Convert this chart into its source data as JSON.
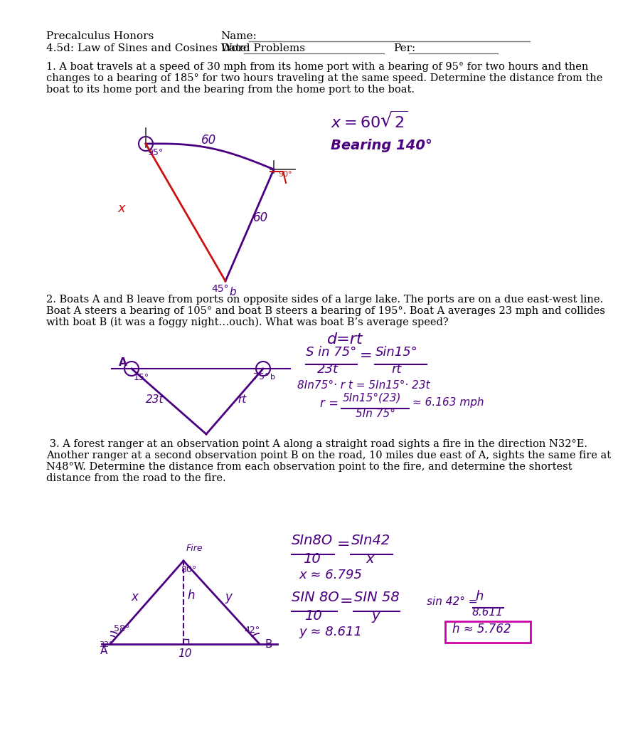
{
  "title_left": "Precalculus Honors",
  "title_right": "Name:",
  "subtitle_left": "4.5d: Law of Sines and Cosines Word Problems",
  "date_label": "Date:",
  "per_label": "Per:",
  "problem1_text": "1. A boat travels at a speed of 30 mph from its home port with a bearing of 95° for two hours and then",
  "problem1_text2": "changes to a bearing of 185° for two hours traveling at the same speed. Determine the distance from the",
  "problem1_text3": "boat to its home port and the bearing from the home port to the boat.",
  "problem2_text": "2. Boats A and B leave from ports on opposite sides of a large lake. The ports are on a due east-west line.",
  "problem2_text2": "Boat A steers a bearing of 105° and boat B steers a bearing of 195°. Boat A averages 23 mph and collides",
  "problem2_text3": "with boat B (it was a foggy night…ouch). What was boat B’s average speed?",
  "problem3_text": " 3. A forest ranger at an observation point A along a straight road sights a fire in the direction N32°E.",
  "problem3_text2": "Another ranger at a second observation point B on the road, 10 miles due east of A, sights the same fire at",
  "problem3_text3": "N48°W. Determine the distance from each observation point to the fire, and determine the shortest",
  "problem3_text4": "distance from the road to the fire.",
  "bg_color": "#ffffff",
  "text_color": "#000000",
  "hw_color": "#4b0082",
  "red_color": "#cc1111"
}
